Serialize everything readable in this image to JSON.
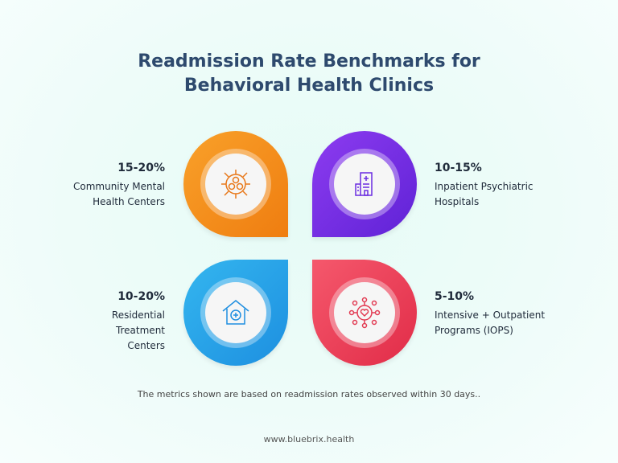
{
  "header": {
    "title": "Readmission Rate Benchmarks for Behavioral Health Clinics"
  },
  "items": [
    {
      "range": "15-20%",
      "label": "Community Mental Health Centers"
    },
    {
      "range": "10-15%",
      "label": "Inpatient Psychiatric Hospitals"
    },
    {
      "range": "10-20%",
      "label": "Residential Treatment Centers"
    },
    {
      "range": "5-10%",
      "label": "Intensive + Outpatient Programs (IOPS)"
    }
  ],
  "footnote": "The metrics shown are based on readmission rates observed within 30 days..",
  "website": "www.bluebrix.health"
}
